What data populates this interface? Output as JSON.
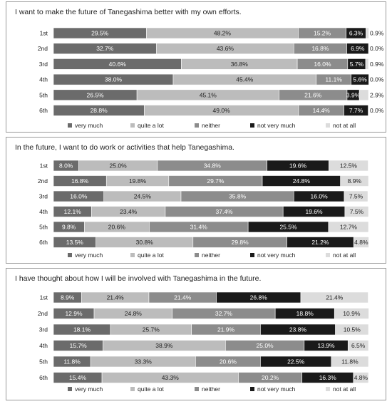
{
  "chart_data": [
    {
      "type": "bar",
      "stacked": true,
      "orientation": "horizontal",
      "title": "I want to make the future of Tanegashima better with my own efforts.",
      "categories": [
        "1st",
        "2nd",
        "3rd",
        "4th",
        "5th",
        "6th"
      ],
      "xlim": [
        0,
        100
      ],
      "legend": "bottom",
      "series": [
        {
          "name": "very much",
          "color": "#6b6b6b",
          "values": [
            29.5,
            32.7,
            40.6,
            38.0,
            26.5,
            28.8
          ]
        },
        {
          "name": "quite a lot",
          "color": "#bcbcbc",
          "values": [
            48.2,
            43.6,
            36.8,
            45.4,
            45.1,
            49.0
          ]
        },
        {
          "name": "neither",
          "color": "#8c8c8c",
          "values": [
            15.2,
            16.8,
            16.0,
            11.1,
            21.6,
            14.4
          ]
        },
        {
          "name": "not very much",
          "color": "#1a1a1a",
          "values": [
            6.3,
            6.9,
            5.7,
            5.6,
            3.9,
            7.7
          ]
        },
        {
          "name": "not at all",
          "color": "#dcdcdc",
          "values": [
            0.9,
            0.0,
            0.9,
            0.0,
            2.9,
            0.0
          ]
        }
      ]
    },
    {
      "type": "bar",
      "stacked": true,
      "orientation": "horizontal",
      "title": "In the future, I want to do work or activities that help Tanegashima.",
      "categories": [
        "1st",
        "2nd",
        "3rd",
        "4th",
        "5th",
        "6th"
      ],
      "xlim": [
        0,
        100
      ],
      "legend": "bottom",
      "series": [
        {
          "name": "very much",
          "color": "#6b6b6b",
          "values": [
            8.0,
            16.8,
            16.0,
            12.1,
            9.8,
            13.5
          ]
        },
        {
          "name": "quite a lot",
          "color": "#bcbcbc",
          "values": [
            25.0,
            19.8,
            24.5,
            23.4,
            20.6,
            30.8
          ]
        },
        {
          "name": "neither",
          "color": "#8c8c8c",
          "values": [
            34.8,
            29.7,
            35.8,
            37.4,
            31.4,
            29.8
          ]
        },
        {
          "name": "not very much",
          "color": "#1a1a1a",
          "values": [
            19.6,
            24.8,
            16.0,
            19.6,
            25.5,
            21.2
          ]
        },
        {
          "name": "not at all",
          "color": "#dcdcdc",
          "values": [
            12.5,
            8.9,
            7.5,
            7.5,
            12.7,
            4.8
          ]
        }
      ]
    },
    {
      "type": "bar",
      "stacked": true,
      "orientation": "horizontal",
      "title": "I have thought about how I will be involved with Tanegashima in the future.",
      "categories": [
        "1st",
        "2nd",
        "3rd",
        "4th",
        "5th",
        "6th"
      ],
      "xlim": [
        0,
        100
      ],
      "legend": "bottom",
      "series": [
        {
          "name": "very much",
          "color": "#6b6b6b",
          "values": [
            8.9,
            12.9,
            18.1,
            15.7,
            11.8,
            15.4
          ]
        },
        {
          "name": "quite a lot",
          "color": "#bcbcbc",
          "values": [
            21.4,
            24.8,
            25.7,
            38.9,
            33.3,
            43.3
          ]
        },
        {
          "name": "neither",
          "color": "#8c8c8c",
          "values": [
            21.4,
            32.7,
            21.9,
            25.0,
            20.6,
            20.2
          ]
        },
        {
          "name": "not very much",
          "color": "#1a1a1a",
          "values": [
            26.8,
            18.8,
            23.8,
            13.9,
            22.5,
            16.3
          ]
        },
        {
          "name": "not at all",
          "color": "#dcdcdc",
          "values": [
            21.4,
            10.9,
            10.5,
            6.5,
            11.8,
            4.8
          ]
        }
      ]
    }
  ]
}
